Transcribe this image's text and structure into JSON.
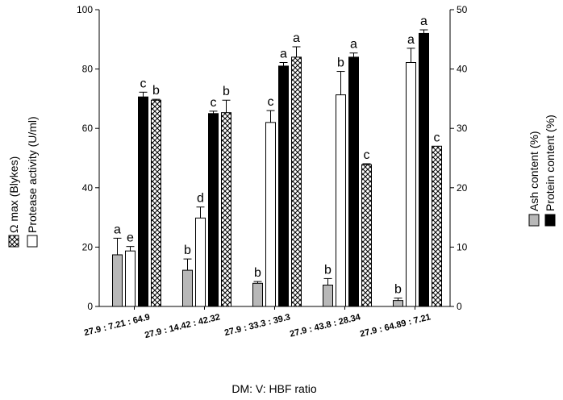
{
  "chart_data": {
    "type": "bar",
    "xlabel": "DM: V: HBF ratio",
    "categories": [
      "27.9 : 7.21 : 64.9",
      "27.9 : 14.42 : 42.32",
      "27.9 : 33.3 : 39.3",
      "27.9 : 43.8 : 28.34",
      "27.9 : 64.89 : 7.21"
    ],
    "left_axis": {
      "label_line1": "Protease activity (U/ml)",
      "label_line2": "Ω max (Blykes)",
      "ylim": [
        0,
        100
      ],
      "ticks": [
        0,
        20,
        40,
        60,
        80,
        100
      ]
    },
    "right_axis": {
      "label_line1": "Ash content (%)",
      "label_line2": "Protein content (%)",
      "ylim": [
        0,
        50
      ],
      "ticks": [
        0,
        10,
        20,
        30,
        40,
        50
      ]
    },
    "series": [
      {
        "name": "Ash content (%)",
        "axis": "right",
        "color": "#b8b8b8",
        "pattern": "solid",
        "values": [
          8.7,
          6.1,
          3.9,
          3.6,
          1.0
        ],
        "errors": [
          2.8,
          1.9,
          0.3,
          1.1,
          0.4
        ],
        "letters": [
          "a",
          "b",
          "b",
          "b",
          "b"
        ]
      },
      {
        "name": "Protease activity (U/ml)",
        "axis": "left",
        "color": "#ffffff",
        "pattern": "open",
        "values": [
          18.7,
          29.8,
          62.0,
          71.3,
          82.2
        ],
        "errors": [
          1.5,
          3.7,
          4.0,
          7.9,
          4.8
        ],
        "letters": [
          "e",
          "d",
          "c",
          "b",
          "a"
        ]
      },
      {
        "name": "Protein content (%)",
        "axis": "right",
        "color": "#000000",
        "pattern": "solid",
        "values": [
          35.3,
          32.5,
          40.5,
          42.0,
          46.0
        ],
        "errors": [
          0.8,
          0.4,
          0.6,
          0.7,
          0.6
        ],
        "letters": [
          "c",
          "c",
          "a",
          "a",
          "a"
        ]
      },
      {
        "name": "Ω max (Blykes)",
        "axis": "left",
        "color": "#ffffff",
        "pattern": "crosshatch",
        "values": [
          69.5,
          65.3,
          84.0,
          47.8,
          54.0
        ],
        "errors": [
          0.3,
          4.2,
          3.5,
          0.3,
          0
        ],
        "letters": [
          "b",
          "b",
          "a",
          "c",
          "c"
        ]
      }
    ]
  }
}
